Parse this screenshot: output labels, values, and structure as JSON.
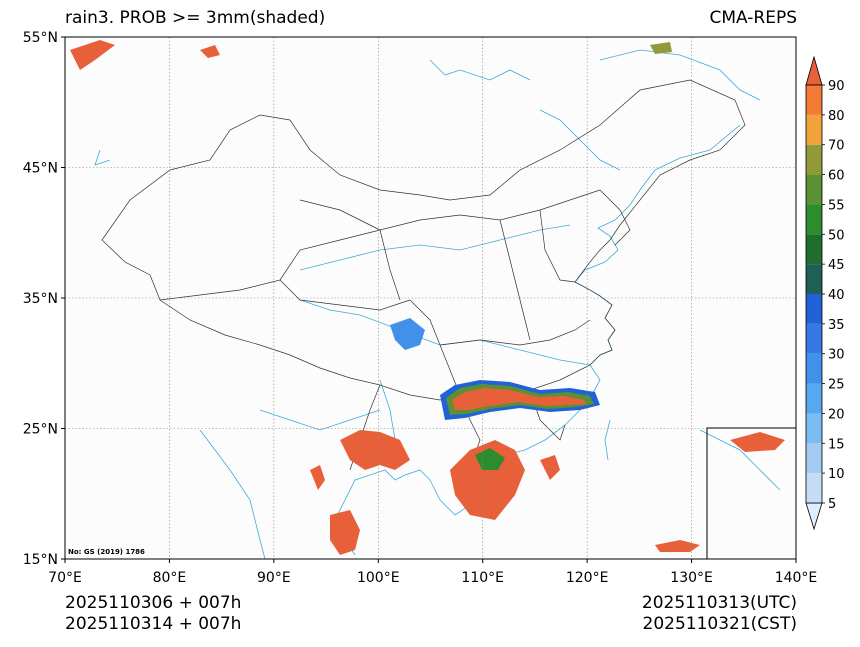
{
  "title_left": "rain3. PROB >= 3mm(shaded)",
  "title_right": "CMA-REPS",
  "lat_ticks": [
    "55°N",
    "45°N",
    "35°N",
    "25°N",
    "15°N"
  ],
  "lon_ticks": [
    "70°E",
    "80°E",
    "90°E",
    "100°E",
    "110°E",
    "120°E",
    "130°E",
    "140°E"
  ],
  "colorbar": {
    "levels": [
      "5",
      "10",
      "15",
      "20",
      "25",
      "30",
      "35",
      "40",
      "45",
      "50",
      "55",
      "60",
      "70",
      "80",
      "90"
    ],
    "colors": [
      "#ddeeff",
      "#c4dcf6",
      "#a4ccf2",
      "#7bbcf2",
      "#56a8f0",
      "#4190ea",
      "#3877e8",
      "#2162d6",
      "#1f5f55",
      "#1f6e2e",
      "#2d8c2d",
      "#5a9135",
      "#919938",
      "#f2a23a",
      "#f27b35",
      "#e8603a"
    ]
  },
  "footer": {
    "left_line1": "2025110306  +  007h",
    "left_line2": "2025110314  +  007h",
    "right_line1": "2025110313(UTC)",
    "right_line2": "2025110321(CST)"
  },
  "note": "No: GS (2019) 1786",
  "map_extent": {
    "lon": [
      70,
      140
    ],
    "lat": [
      15,
      55
    ]
  },
  "colors": {
    "coast": "#3fa9dc",
    "border": "#333333",
    "grid": "#888888"
  }
}
